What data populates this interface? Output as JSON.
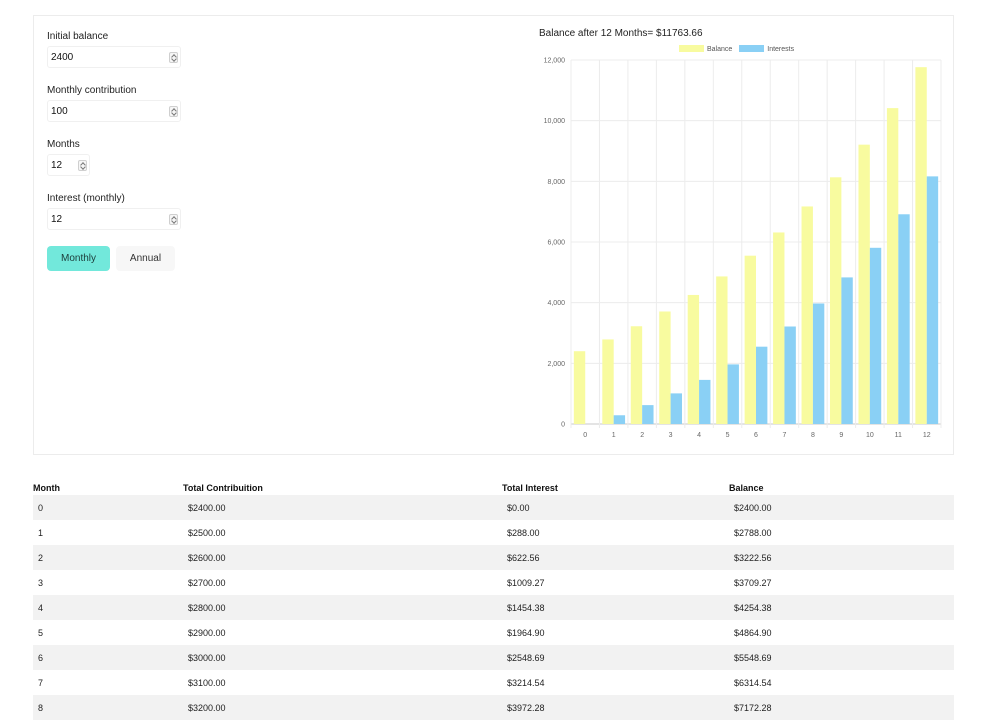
{
  "form": {
    "initial_balance": {
      "label": "Initial balance",
      "value": "2400"
    },
    "monthly_contribution": {
      "label": "Monthly contribution",
      "value": "100"
    },
    "months": {
      "label": "Months",
      "value": "12"
    },
    "interest": {
      "label": "Interest (monthly)",
      "value": "12"
    },
    "buttons": {
      "monthly": "Monthly",
      "annual": "Annual"
    },
    "active_color": "#72e8db"
  },
  "chart_data": {
    "type": "bar",
    "title": "Balance after 12 Months= $11763.66",
    "categories": [
      "0",
      "1",
      "2",
      "3",
      "4",
      "5",
      "6",
      "7",
      "8",
      "9",
      "10",
      "11",
      "12"
    ],
    "series": [
      {
        "name": "Balance",
        "color": "#f8fb9f",
        "values": [
          2400,
          2788.0,
          3222.56,
          3709.27,
          4254.38,
          4864.9,
          5548.69,
          6314.54,
          7172.28,
          8132.96,
          9208.91,
          10414.01,
          11763.66
        ]
      },
      {
        "name": "Interests",
        "color": "#8ad0f5",
        "values": [
          0,
          288.0,
          622.56,
          1009.27,
          1454.38,
          1964.9,
          2548.69,
          3214.54,
          3972.28,
          4832.96,
          5808.91,
          6914.01,
          8163.66
        ]
      }
    ],
    "y_ticks": [
      "0",
      "2,000",
      "4,000",
      "6,000",
      "8,000",
      "10,000",
      "12,000"
    ],
    "ylim": [
      0,
      12000
    ],
    "legend": "top",
    "grid": true
  },
  "table": {
    "headers": [
      "Month",
      "Total Contribuition",
      "Total Interest",
      "Balance"
    ],
    "rows": [
      [
        "0",
        "$2400.00",
        "$0.00",
        "$2400.00"
      ],
      [
        "1",
        "$2500.00",
        "$288.00",
        "$2788.00"
      ],
      [
        "2",
        "$2600.00",
        "$622.56",
        "$3222.56"
      ],
      [
        "3",
        "$2700.00",
        "$1009.27",
        "$3709.27"
      ],
      [
        "4",
        "$2800.00",
        "$1454.38",
        "$4254.38"
      ],
      [
        "5",
        "$2900.00",
        "$1964.90",
        "$4864.90"
      ],
      [
        "6",
        "$3000.00",
        "$2548.69",
        "$5548.69"
      ],
      [
        "7",
        "$3100.00",
        "$3214.54",
        "$6314.54"
      ],
      [
        "8",
        "$3200.00",
        "$3972.28",
        "$7172.28"
      ]
    ]
  }
}
